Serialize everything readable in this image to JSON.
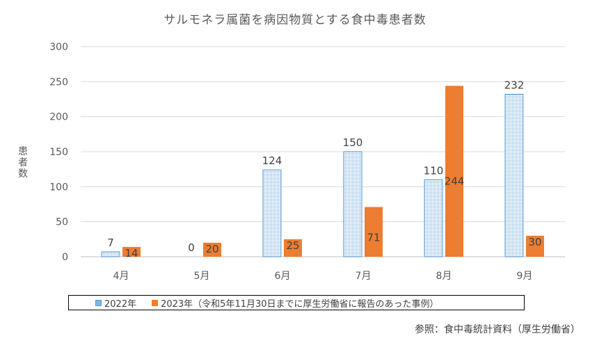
{
  "chart_data": {
    "type": "bar",
    "title": "サルモネラ属菌を病因物質とする食中毒患者数",
    "ylabel": "患者数",
    "xlabel": "",
    "categories": [
      "4月",
      "5月",
      "6月",
      "7月",
      "8月",
      "9月"
    ],
    "ylim": [
      0,
      300
    ],
    "yticks": [
      0,
      50,
      100,
      150,
      200,
      250,
      300
    ],
    "grid": true,
    "legend_position": "bottom",
    "series": [
      {
        "name": "2022年",
        "values": [
          7,
          0,
          124,
          150,
          110,
          232
        ],
        "color": "#5b9bd5",
        "pattern": "dotted"
      },
      {
        "name": "2023年（令和5年11月30日までに厚生労働省に報告のあった事例）",
        "values": [
          14,
          20,
          25,
          71,
          244,
          30
        ],
        "color": "#ed7d31",
        "pattern": "solid"
      }
    ]
  },
  "source_note": "参照：食中毒統計資料（厚生労働省）"
}
